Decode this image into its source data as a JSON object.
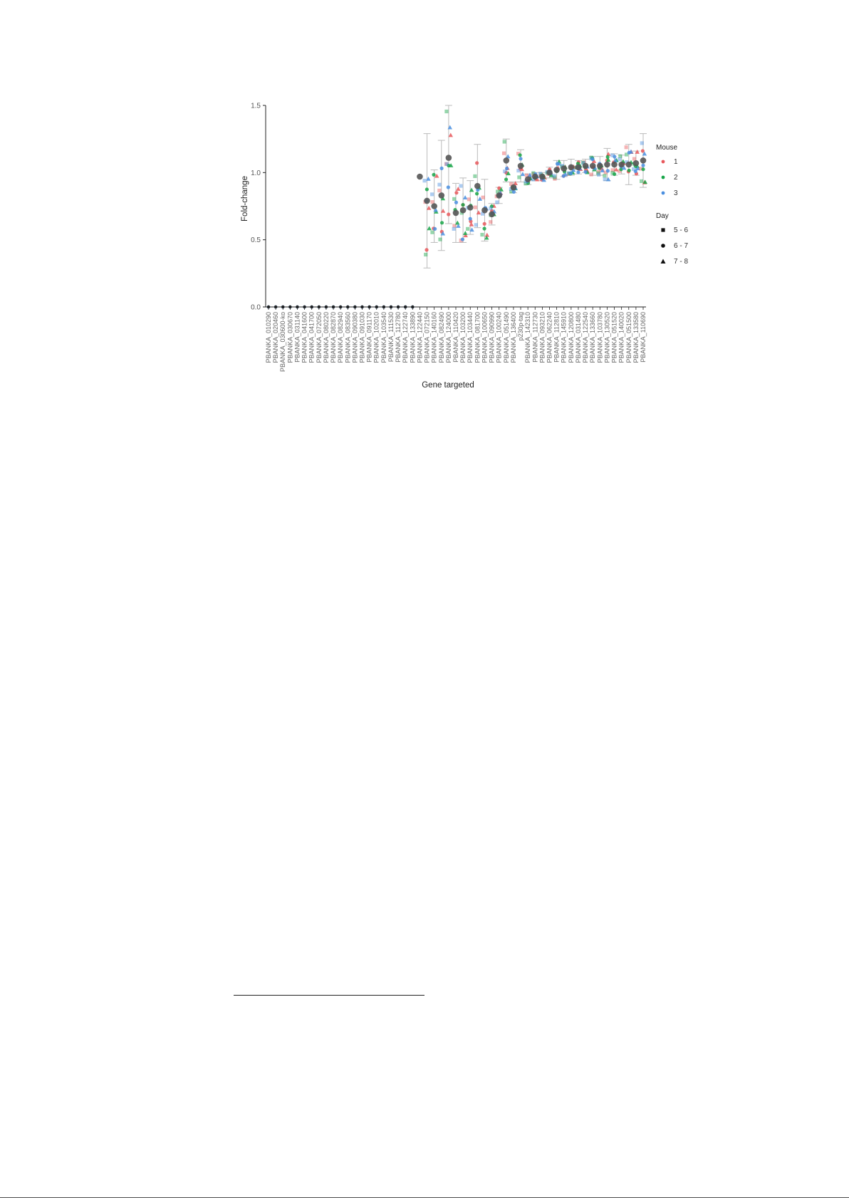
{
  "chart_data": {
    "type": "scatter",
    "xlabel": "Gene targeted",
    "ylabel": "Fold-change",
    "ylim": [
      0,
      1.5
    ],
    "yticks": [
      "0.0",
      "0.5",
      "1.0",
      "1.5"
    ],
    "grid": false,
    "legend_placement": "right",
    "legend": {
      "mouse_title": "Mouse",
      "mouse": [
        {
          "label": "1",
          "color": "#e8585c"
        },
        {
          "label": "2",
          "color": "#17a548"
        },
        {
          "label": "3",
          "color": "#4a8fe0"
        }
      ],
      "day_title": "Day",
      "day": [
        {
          "label": "5 - 6",
          "marker": "square"
        },
        {
          "label": "6 - 7",
          "marker": "circle"
        },
        {
          "label": "7 - 8",
          "marker": "triangle"
        }
      ]
    },
    "categories": [
      "PBANKA_010290",
      "PBANKA_020460",
      "PBANKA_030600-ko",
      "PBANKA_030670",
      "PBANKA_031140",
      "PBANKA_041600",
      "PBANKA_041700",
      "PBANKA_072050",
      "PBANKA_080220",
      "PBANKA_082870",
      "PBANKA_082940",
      "PBANKA_083560",
      "PBANKA_090380",
      "PBANKA_091030",
      "PBANKA_091170",
      "PBANKA_102010",
      "PBANKA_103540",
      "PBANKA_111530",
      "PBANKA_112780",
      "PBANKA_122740",
      "PBANKA_133890",
      "PBANKA_122440",
      "PBANKA_072150",
      "PBANKA_140160",
      "PBANKA_082490",
      "PBANKA_124000",
      "PBANKA_110420",
      "PBANKA_103200",
      "PBANKA_103440",
      "PBANKA_081700",
      "PBANKA_100650",
      "PBANKA_090990",
      "PBANKA_100240",
      "PBANKA_051490",
      "PBANKA_136400",
      "p230p-tag",
      "PBANKA_142310",
      "PBANKA_112730",
      "PBANKA_093210",
      "PBANKA_062240",
      "PBANKA_112810",
      "PBANKA_145910",
      "PBANKA_120800",
      "PBANKA_031480",
      "PBANKA_122540",
      "PBANKA_133660",
      "PBANKA_103780",
      "PBANKA_130520",
      "PBANKA_051520",
      "PBANKA_140020",
      "PBANKA_051500",
      "PBANKA_133580",
      "PBANKA_110690"
    ],
    "mean": [
      0,
      0,
      0,
      0,
      0,
      0,
      0,
      0,
      0,
      0,
      0,
      0,
      0,
      0,
      0,
      0,
      0,
      0,
      0,
      0,
      0,
      0.97,
      0.79,
      0.75,
      0.83,
      1.11,
      0.7,
      0.72,
      0.74,
      0.9,
      0.72,
      0.69,
      0.83,
      1.09,
      0.89,
      1.05,
      0.95,
      0.97,
      0.97,
      1.0,
      1.02,
      1.03,
      1.04,
      1.04,
      1.05,
      1.05,
      1.05,
      1.06,
      1.06,
      1.06,
      1.06,
      1.07,
      1.09
    ],
    "sd": [
      0,
      0,
      0,
      0,
      0,
      0,
      0,
      0,
      0,
      0,
      0,
      0,
      0,
      0,
      0,
      0,
      0,
      0,
      0,
      0,
      0,
      0,
      0.5,
      0.27,
      0.41,
      0.49,
      0.22,
      0.24,
      0.2,
      0.31,
      0.23,
      0.08,
      0.06,
      0.16,
      0.04,
      0.12,
      0.04,
      0.03,
      0.03,
      0.04,
      0.07,
      0.06,
      0.06,
      0.05,
      0.05,
      0.07,
      0.07,
      0.12,
      0.08,
      0.07,
      0.15,
      0.09,
      0.2
    ]
  }
}
